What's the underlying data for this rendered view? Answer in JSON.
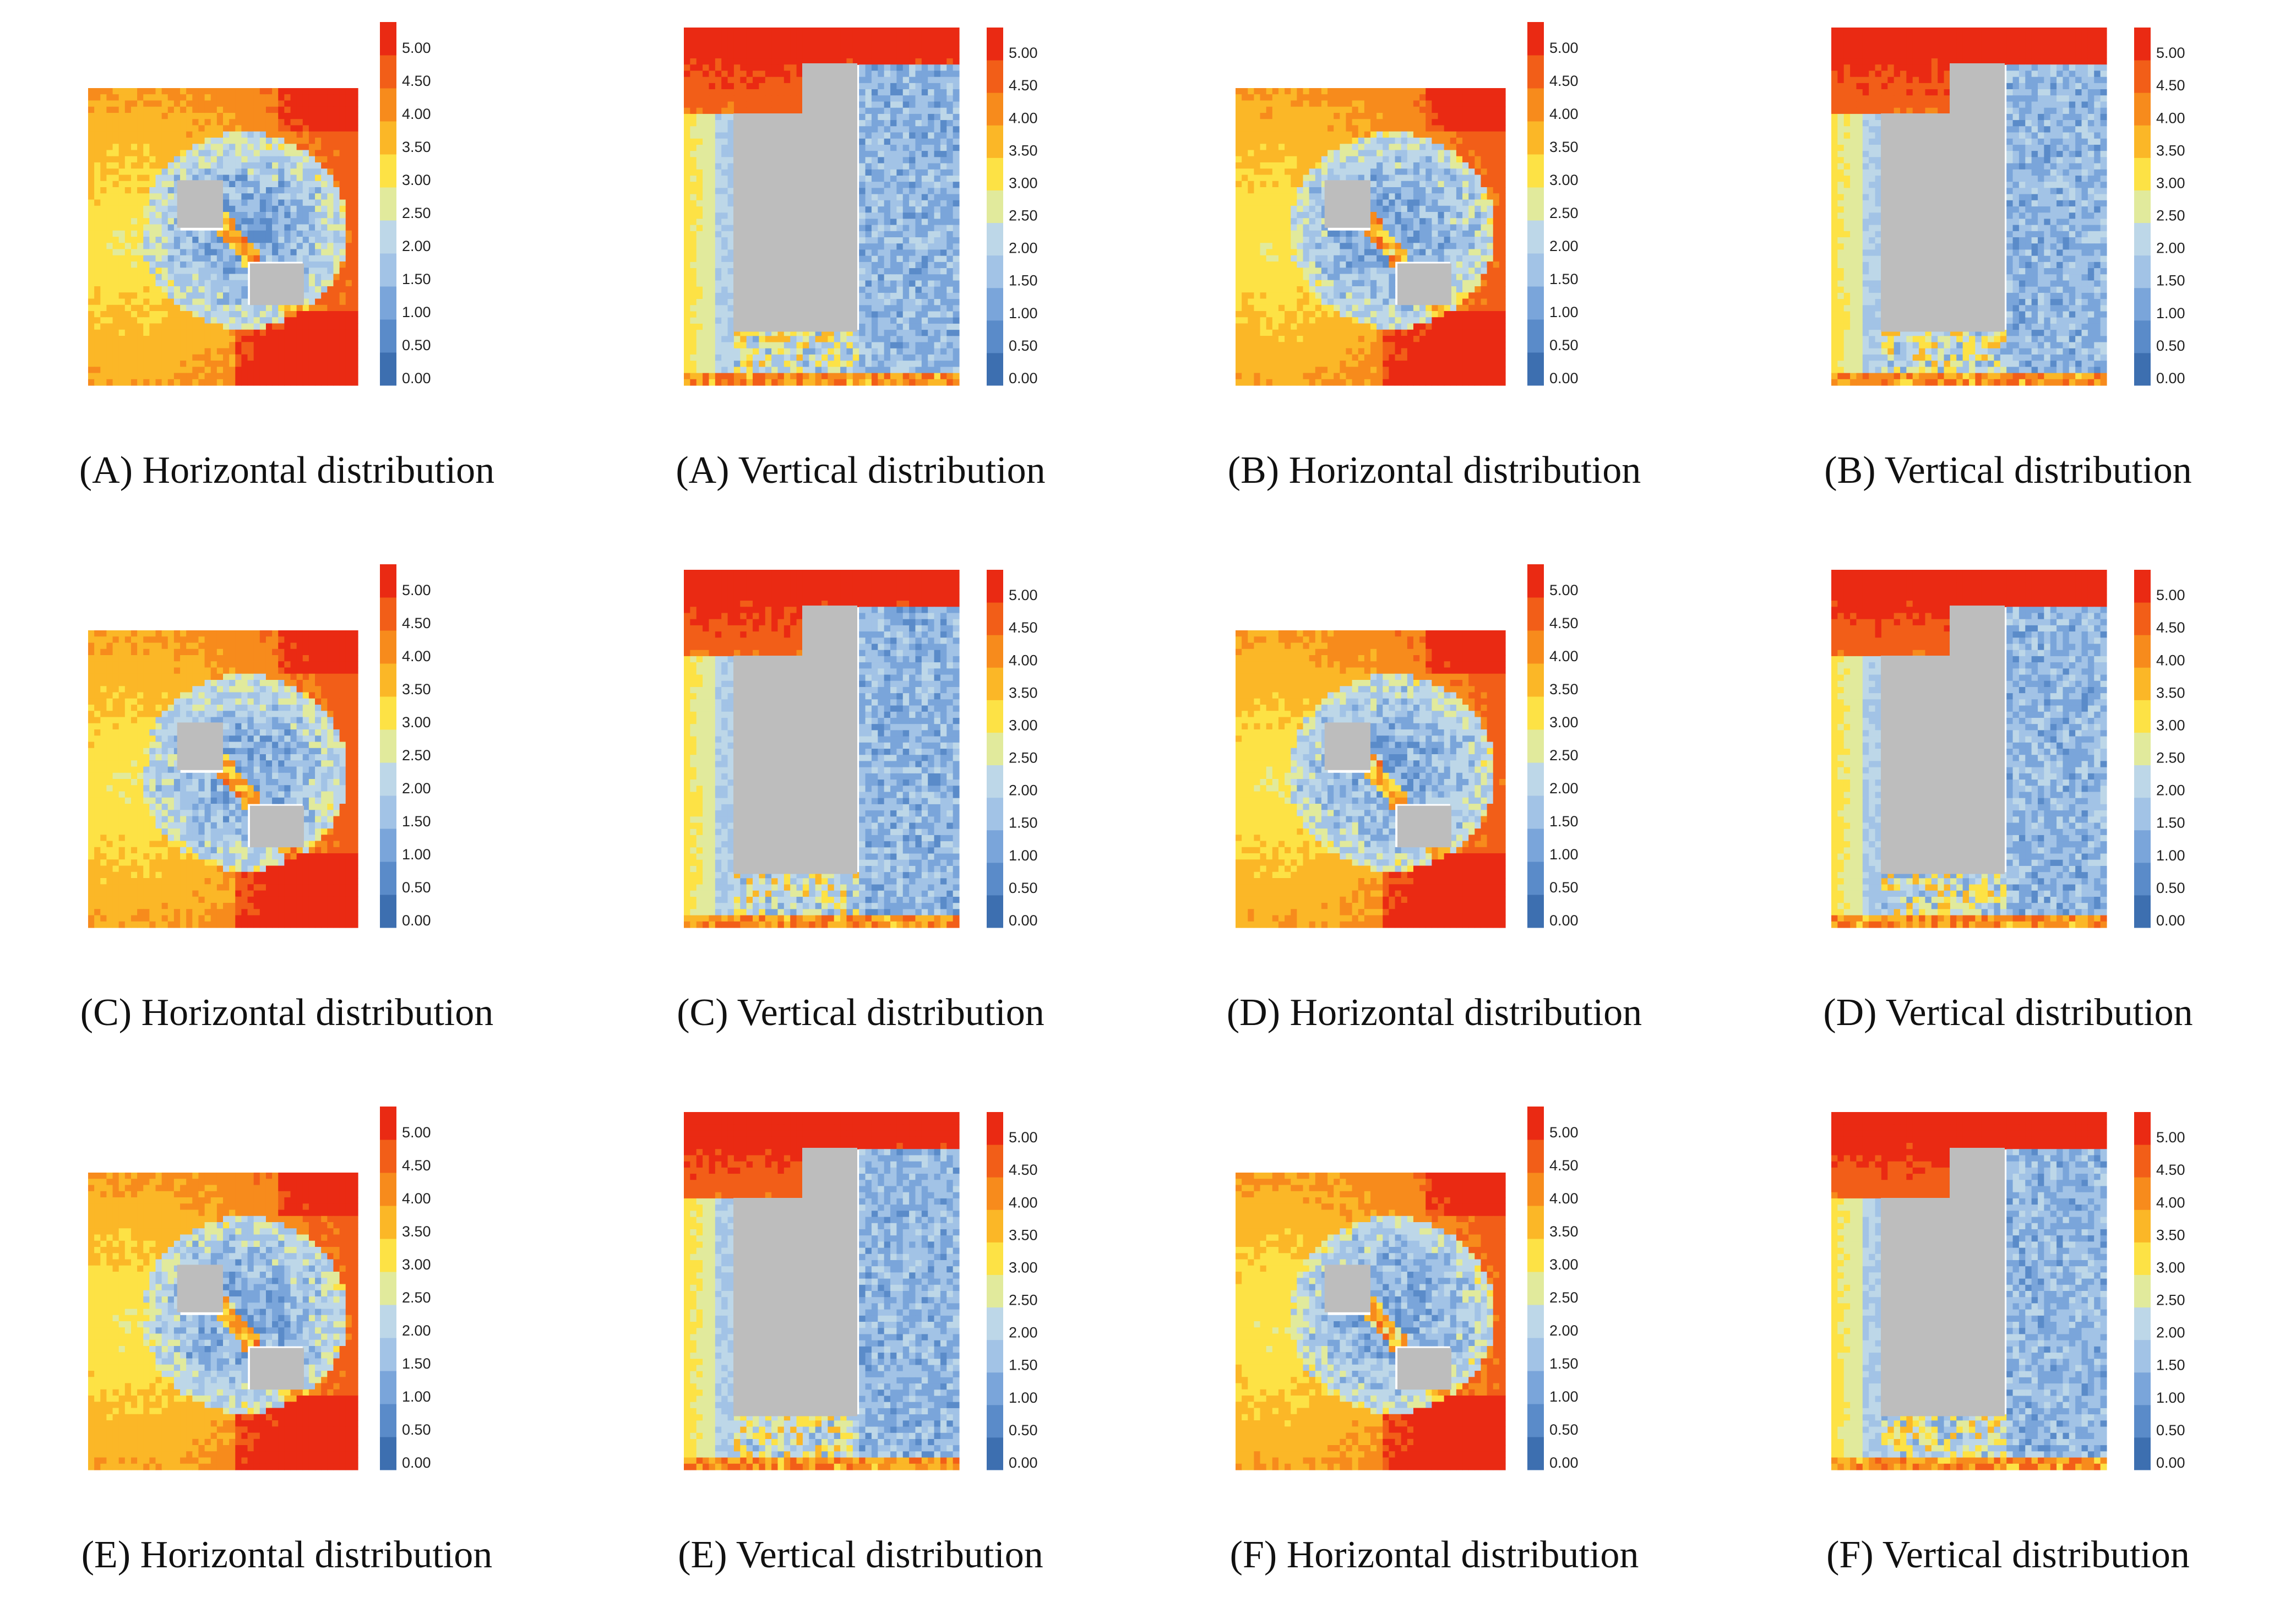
{
  "figure": {
    "panels": [
      {
        "id": "A",
        "view": "horizontal",
        "caption": "(A) Horizontal distribution"
      },
      {
        "id": "A",
        "view": "vertical",
        "caption": "(A) Vertical distribution"
      },
      {
        "id": "B",
        "view": "horizontal",
        "caption": "(B) Horizontal distribution"
      },
      {
        "id": "B",
        "view": "vertical",
        "caption": "(B) Vertical distribution"
      },
      {
        "id": "C",
        "view": "horizontal",
        "caption": "(C) Horizontal distribution"
      },
      {
        "id": "C",
        "view": "vertical",
        "caption": "(C) Vertical distribution"
      },
      {
        "id": "D",
        "view": "horizontal",
        "caption": "(D) Horizontal distribution"
      },
      {
        "id": "D",
        "view": "vertical",
        "caption": "(D) Vertical distribution"
      },
      {
        "id": "E",
        "view": "horizontal",
        "caption": "(E) Horizontal distribution"
      },
      {
        "id": "E",
        "view": "vertical",
        "caption": "(E) Vertical distribution"
      },
      {
        "id": "F",
        "view": "horizontal",
        "caption": "(F) Horizontal distribution"
      },
      {
        "id": "F",
        "view": "vertical",
        "caption": "(F) Vertical distribution"
      }
    ]
  },
  "chart_data": {
    "type": "heatmap",
    "colorbar": {
      "ticks": [
        "0.00",
        "0.50",
        "1.00",
        "1.50",
        "2.00",
        "2.50",
        "3.00",
        "3.50",
        "4.00",
        "4.50",
        "5.00"
      ],
      "range": [
        0,
        5.5
      ],
      "colors": [
        "#3d6fb0",
        "#5a8bc9",
        "#7aa5da",
        "#a2c3e6",
        "#bdd7e8",
        "#e1ea9c",
        "#fde245",
        "#fbb727",
        "#f78b1c",
        "#f25e18",
        "#ea2a13"
      ]
    },
    "obstacle_color": "#bdbdbd"
  }
}
